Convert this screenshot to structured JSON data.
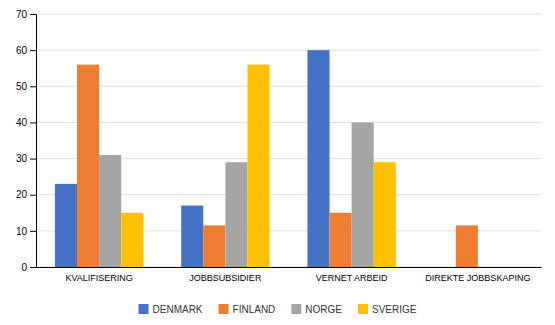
{
  "chart_data": {
    "type": "bar",
    "categories": [
      "KVALIFISERING",
      "JOBBSUBSIDIER",
      "VERNET ARBEID",
      "DIREKTE JOBBSKAPING"
    ],
    "series": [
      {
        "name": "DENMARK",
        "color": "#4472C4",
        "values": [
          23,
          17,
          60,
          0
        ]
      },
      {
        "name": "FINLAND",
        "color": "#ED7D31",
        "values": [
          56,
          11.5,
          15,
          11.5
        ]
      },
      {
        "name": "NORGE",
        "color": "#A5A5A5",
        "values": [
          31,
          29,
          40,
          0
        ]
      },
      {
        "name": "SVERIGE",
        "color": "#FFC000",
        "values": [
          15,
          56,
          29,
          0
        ]
      }
    ],
    "ylim": [
      0,
      70
    ],
    "yticks": [
      0,
      10,
      20,
      30,
      40,
      50,
      60,
      70
    ],
    "grid": true,
    "legend": "bottom"
  }
}
